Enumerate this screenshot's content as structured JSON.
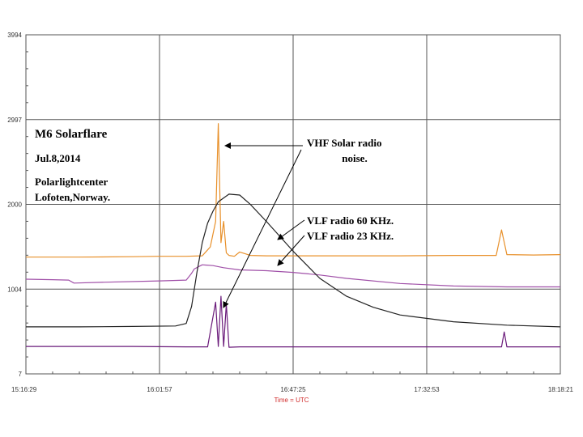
{
  "chart_data": {
    "type": "line",
    "xlabel": "Time = UTC",
    "x_ticks": [
      "15:16:29",
      "16:01:57",
      "16:47:25",
      "17:32:53",
      "18:18:21"
    ],
    "y_ticks": [
      "7",
      "1004",
      "2000",
      "2997",
      "3994"
    ],
    "ylim": [
      7,
      3994
    ],
    "grid": true,
    "annotations": {
      "title": "M6 Solarflare",
      "date": "Jul.8,2014",
      "location_line1": "Polarlightcenter",
      "location_line2": "Lofoten,Norway.",
      "vhf_line1": "VHF Solar radio",
      "vhf_line2": "noise.",
      "vlf60": "VLF radio 60 KHz.",
      "vlf23": "VLF radio 23 KHz."
    },
    "series": [
      {
        "color": "#e8902a",
        "t": [
          0,
          0.1,
          0.2,
          0.25,
          0.3,
          0.33,
          0.345,
          0.355,
          0.36,
          0.365,
          0.37,
          0.375,
          0.38,
          0.39,
          0.4,
          0.42,
          0.45,
          0.5,
          0.6,
          0.7,
          0.8,
          0.88,
          0.89,
          0.9,
          0.95,
          1.0
        ],
        "values": [
          1380,
          1380,
          1385,
          1390,
          1390,
          1395,
          1500,
          1800,
          2950,
          1550,
          1800,
          1430,
          1400,
          1390,
          1440,
          1400,
          1395,
          1395,
          1395,
          1395,
          1400,
          1400,
          1700,
          1410,
          1405,
          1410
        ]
      },
      {
        "color": "#a050a8",
        "t": [
          0,
          0.05,
          0.08,
          0.09,
          0.15,
          0.25,
          0.3,
          0.31,
          0.315,
          0.33,
          0.35,
          0.37,
          0.4,
          0.45,
          0.5,
          0.55,
          0.6,
          0.7,
          0.8,
          0.9,
          1.0
        ],
        "values": [
          1120,
          1115,
          1110,
          1075,
          1085,
          1100,
          1110,
          1190,
          1240,
          1290,
          1280,
          1255,
          1230,
          1220,
          1200,
          1170,
          1130,
          1070,
          1040,
          1030,
          1030
        ]
      },
      {
        "color": "#222222",
        "t": [
          0,
          0.1,
          0.2,
          0.28,
          0.3,
          0.31,
          0.32,
          0.33,
          0.34,
          0.35,
          0.36,
          0.38,
          0.4,
          0.42,
          0.45,
          0.5,
          0.55,
          0.6,
          0.65,
          0.7,
          0.8,
          0.9,
          1.0
        ],
        "values": [
          560,
          560,
          565,
          570,
          600,
          800,
          1200,
          1550,
          1780,
          1920,
          2030,
          2120,
          2110,
          2000,
          1800,
          1450,
          1130,
          920,
          790,
          700,
          620,
          580,
          560
        ]
      },
      {
        "color": "#6a1a7a",
        "t": [
          0,
          0.2,
          0.3,
          0.34,
          0.355,
          0.36,
          0.365,
          0.37,
          0.375,
          0.38,
          0.4,
          0.6,
          0.8,
          0.89,
          0.895,
          0.9,
          1.0
        ],
        "values": [
          330,
          330,
          325,
          325,
          850,
          330,
          920,
          330,
          830,
          320,
          325,
          325,
          325,
          325,
          500,
          325,
          325
        ]
      }
    ]
  }
}
